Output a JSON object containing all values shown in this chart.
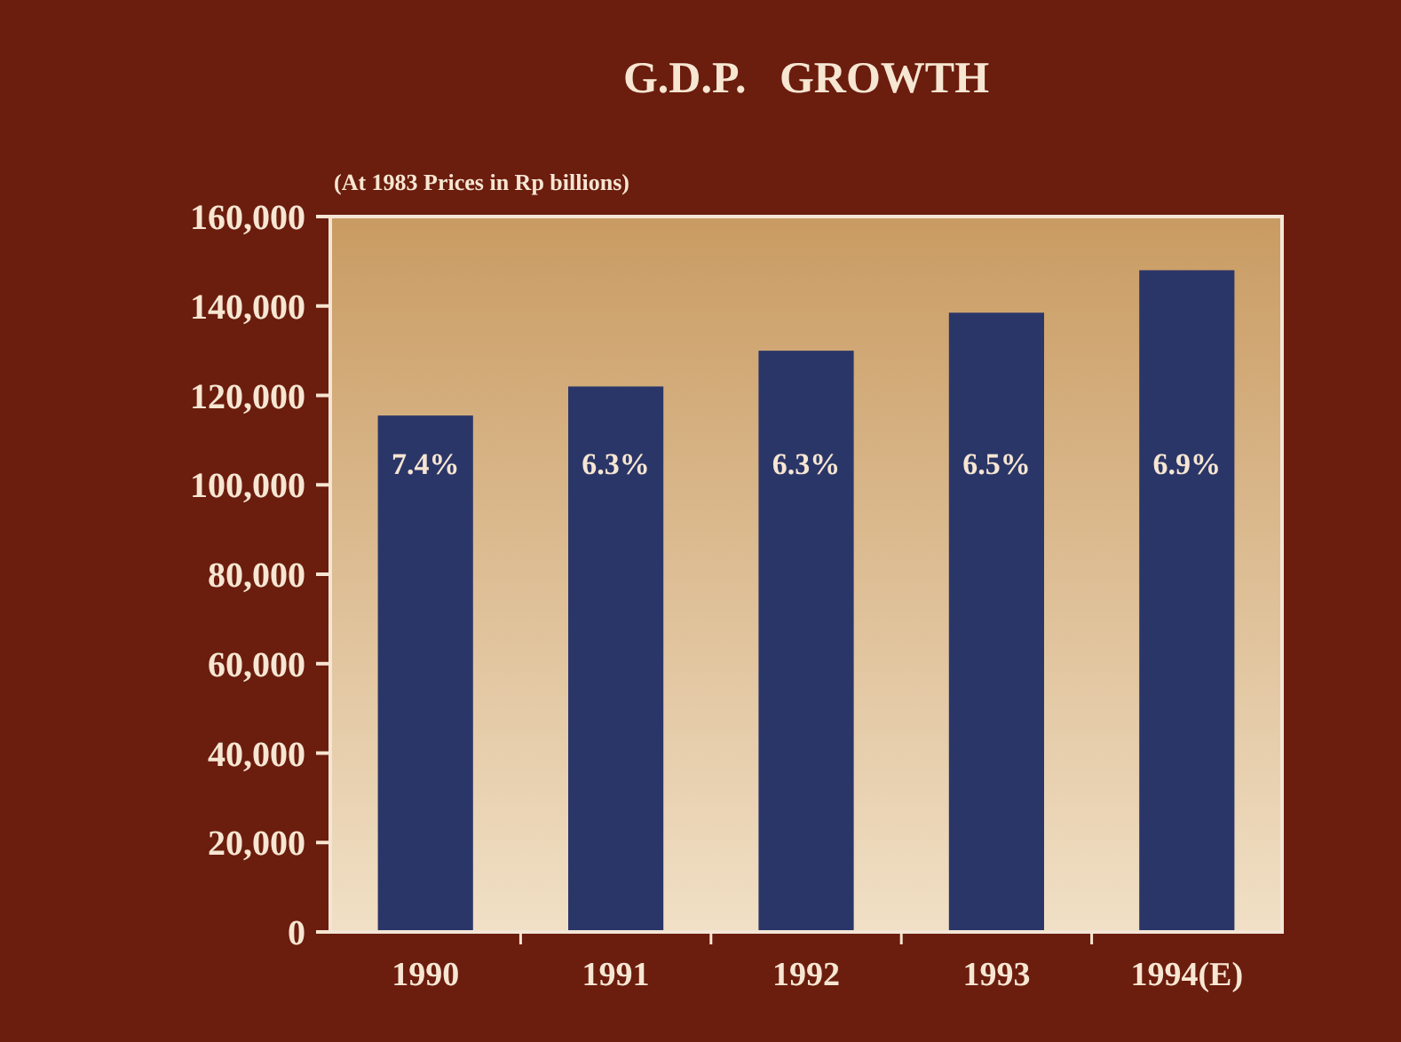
{
  "chart_data": {
    "type": "bar",
    "title": "G.D.P.   GROWTH",
    "subtitle": "(At 1983 Prices in Rp billions)",
    "categories": [
      "1990",
      "1991",
      "1992",
      "1993",
      "1994(E)"
    ],
    "values": [
      115500,
      122000,
      130000,
      138500,
      148000
    ],
    "annotations": [
      "7.4%",
      "6.3%",
      "6.3%",
      "6.5%",
      "6.9%"
    ],
    "color": "#2b3668",
    "ylim": [
      0,
      160000
    ],
    "yticks": [
      {
        "value": 0,
        "label": "0"
      },
      {
        "value": 20000,
        "label": "20,000"
      },
      {
        "value": 40000,
        "label": "40,000"
      },
      {
        "value": 60000,
        "label": "60,000"
      },
      {
        "value": 80000,
        "label": "80,000"
      },
      {
        "value": 100000,
        "label": "100,000"
      },
      {
        "value": 120000,
        "label": "120,000"
      },
      {
        "value": 140000,
        "label": "140,000"
      },
      {
        "value": 160000,
        "label": "160,000"
      }
    ],
    "grid": false
  }
}
